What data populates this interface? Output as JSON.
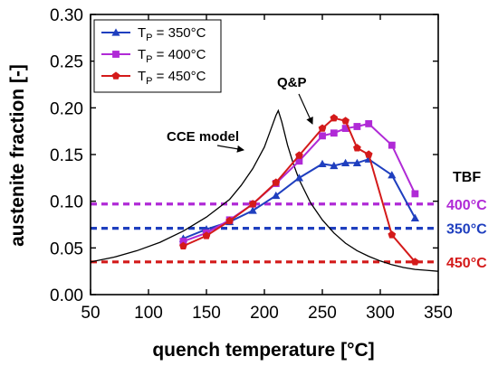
{
  "chart_data": {
    "type": "line",
    "xlabel": "quench temperature [°C]",
    "ylabel": "austenite fraction [-]",
    "xlim": [
      50,
      350
    ],
    "ylim": [
      0.0,
      0.3
    ],
    "x_ticks": [
      "50",
      "100",
      "150",
      "200",
      "250",
      "300",
      "350"
    ],
    "y_ticks": [
      "0.00",
      "0.05",
      "0.10",
      "0.15",
      "0.20",
      "0.25",
      "0.30"
    ],
    "legend": {
      "placement": "top-left"
    },
    "series": [
      {
        "name": "T_P = 350°C",
        "label_main": "T",
        "label_sub": "P",
        "label_rest": " = 350°C",
        "color": "#1f3fbf",
        "marker": "triangle",
        "x": [
          130,
          150,
          170,
          190,
          210,
          230,
          250,
          260,
          270,
          280,
          290,
          310,
          330
        ],
        "y": [
          0.06,
          0.07,
          0.078,
          0.09,
          0.106,
          0.125,
          0.14,
          0.138,
          0.141,
          0.141,
          0.145,
          0.128,
          0.082
        ]
      },
      {
        "name": "T_P = 400°C",
        "label_main": "T",
        "label_sub": "P",
        "label_rest": " = 400°C",
        "color": "#b02ad6",
        "marker": "square",
        "x": [
          130,
          150,
          170,
          190,
          210,
          230,
          250,
          260,
          270,
          280,
          290,
          310,
          330
        ],
        "y": [
          0.057,
          0.066,
          0.08,
          0.097,
          0.119,
          0.143,
          0.17,
          0.173,
          0.178,
          0.18,
          0.183,
          0.16,
          0.108
        ]
      },
      {
        "name": "T_P = 450°C",
        "label_main": "T",
        "label_sub": "P",
        "label_rest": " = 450°C",
        "color": "#d41a1a",
        "marker": "pentagon",
        "x": [
          130,
          150,
          170,
          190,
          210,
          230,
          250,
          260,
          270,
          280,
          290,
          310,
          330
        ],
        "y": [
          0.052,
          0.063,
          0.079,
          0.097,
          0.12,
          0.149,
          0.178,
          0.189,
          0.186,
          0.157,
          0.15,
          0.064,
          0.035
        ]
      }
    ],
    "cce_model": {
      "label": "CCE model",
      "color": "#000000",
      "x": [
        50,
        70,
        90,
        110,
        130,
        150,
        170,
        180,
        190,
        200,
        205,
        210,
        212,
        215,
        220,
        225,
        230,
        240,
        250,
        260,
        270,
        280,
        290,
        300,
        310,
        320,
        330,
        340,
        350
      ],
      "y": [
        0.035,
        0.04,
        0.047,
        0.056,
        0.068,
        0.083,
        0.102,
        0.117,
        0.135,
        0.158,
        0.175,
        0.192,
        0.197,
        0.185,
        0.16,
        0.14,
        0.123,
        0.098,
        0.08,
        0.066,
        0.055,
        0.047,
        0.041,
        0.036,
        0.032,
        0.029,
        0.027,
        0.026,
        0.025
      ]
    },
    "tbf_lines": [
      {
        "label": "400°C",
        "y": 0.097,
        "color": "#b02ad6"
      },
      {
        "label": "350°C",
        "y": 0.071,
        "color": "#1f3fbf"
      },
      {
        "label": "450°C",
        "y": 0.035,
        "color": "#d41a1a"
      }
    ],
    "annotations": {
      "tbf_title": "TBF",
      "qp_label": "Q&P",
      "cce_label": "CCE model"
    }
  }
}
